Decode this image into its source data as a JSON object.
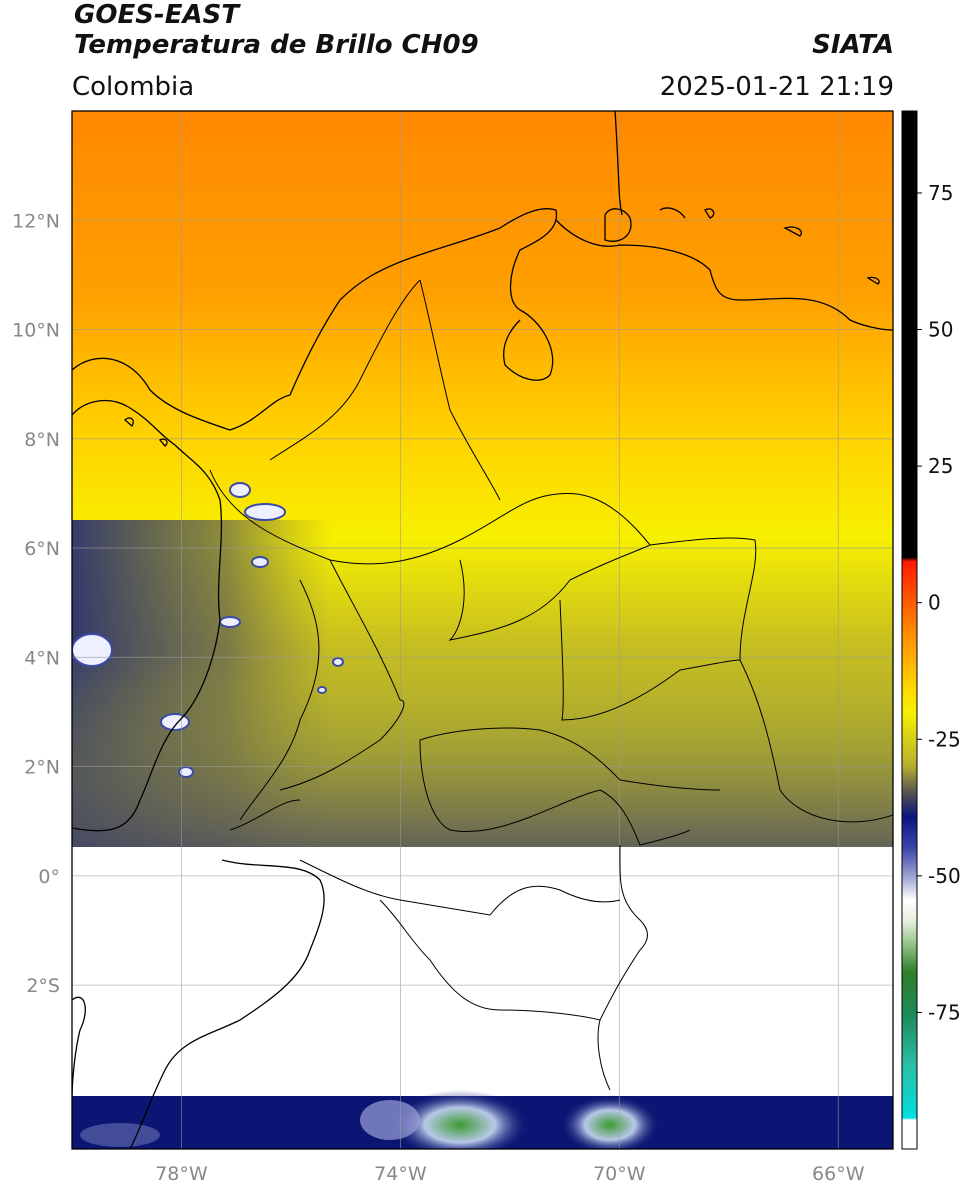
{
  "header": {
    "satellite": "GOES-EAST",
    "product": "Temperatura de Brillo CH09",
    "region": "Colombia",
    "agency": "SIATA",
    "datetime": "2025-01-21 21:19"
  },
  "map": {
    "lon_range": [
      -80,
      -65
    ],
    "lat_range": [
      -5,
      14
    ],
    "lat_ticks": [
      {
        "value": 12,
        "label": "12°N"
      },
      {
        "value": 10,
        "label": "10°N"
      },
      {
        "value": 8,
        "label": "8°N"
      },
      {
        "value": 6,
        "label": "6°N"
      },
      {
        "value": 4,
        "label": "4°N"
      },
      {
        "value": 2,
        "label": "2°N"
      },
      {
        "value": 0,
        "label": "0°"
      },
      {
        "value": -2,
        "label": "2°S"
      }
    ],
    "lon_ticks": [
      {
        "value": -78,
        "label": "78°W"
      },
      {
        "value": -74,
        "label": "74°W"
      },
      {
        "value": -70,
        "label": "70°W"
      },
      {
        "value": -66,
        "label": "66°W"
      }
    ],
    "no_data_band_lat": [
      -4,
      0.55
    ],
    "colors": {
      "warm_orange": "#ff8c00",
      "yellow": "#ffff00",
      "olive": "#a8a830",
      "navy": "#0a1470",
      "white": "#ffffff",
      "green": "#2e8b2e"
    }
  },
  "colorbar": {
    "range": [
      -100,
      90
    ],
    "ticks": [
      {
        "value": 75,
        "label": "75"
      },
      {
        "value": 50,
        "label": "50"
      },
      {
        "value": 25,
        "label": "25"
      },
      {
        "value": 0,
        "label": "0"
      },
      {
        "value": -25,
        "label": "-25"
      },
      {
        "value": -50,
        "label": "-50"
      },
      {
        "value": -75,
        "label": "-75"
      }
    ]
  }
}
